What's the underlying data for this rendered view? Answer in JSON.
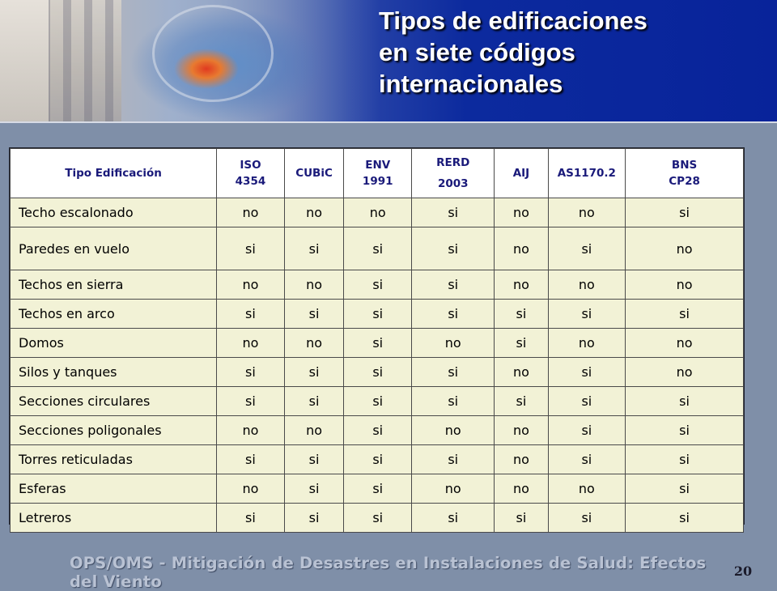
{
  "slide": {
    "title_lines": [
      "Tipos de edificaciones",
      "en siete códigos",
      "internacionales"
    ],
    "footer": "OPS/OMS - Mitigación de Desastres en Instalaciones de Salud: Efectos del Viento",
    "page_number": "20"
  },
  "table": {
    "headers": [
      "Tipo Edificación",
      "ISO 4354",
      "CUBiC",
      "ENV 1991",
      "RERD 2003",
      "AIJ",
      "AS1170.2",
      "BNS CP28"
    ],
    "rows": [
      [
        "Techo escalonado",
        "no",
        "no",
        "no",
        "si",
        "no",
        "no",
        "si"
      ],
      [
        "Paredes en vuelo",
        "si",
        "si",
        "si",
        "si",
        "no",
        "si",
        "no"
      ],
      [
        "Techos en sierra",
        "no",
        "no",
        "si",
        "si",
        "no",
        "no",
        "no"
      ],
      [
        "Techos en arco",
        "si",
        "si",
        "si",
        "si",
        "si",
        "si",
        "si"
      ],
      [
        "Domos",
        "no",
        "no",
        "si",
        "no",
        "si",
        "no",
        "no"
      ],
      [
        "Silos y tanques",
        "si",
        "si",
        "si",
        "si",
        "no",
        "si",
        "no"
      ],
      [
        "Secciones circulares",
        "si",
        "si",
        "si",
        "si",
        "si",
        "si",
        "si"
      ],
      [
        "Secciones poligonales",
        "no",
        "no",
        "si",
        "no",
        "no",
        "si",
        "si"
      ],
      [
        "Torres reticuladas",
        "si",
        "si",
        "si",
        "si",
        "no",
        "si",
        "si"
      ],
      [
        "Esferas",
        "no",
        "si",
        "si",
        "no",
        "no",
        "no",
        "si"
      ],
      [
        "Letreros",
        "si",
        "si",
        "si",
        "si",
        "si",
        "si",
        "si"
      ]
    ]
  }
}
